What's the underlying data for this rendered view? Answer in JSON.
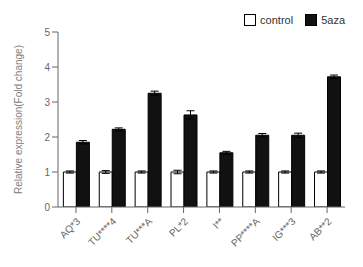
{
  "chart_data": {
    "type": "bar",
    "categories": [
      "AQ*3",
      "TU****4",
      "TU***A",
      "PL*2",
      "I**",
      "PP****A",
      "IG***3",
      "AB**2"
    ],
    "series": [
      {
        "name": "control",
        "color": "#ffffff",
        "values": [
          1.0,
          1.0,
          1.0,
          1.0,
          1.0,
          1.0,
          1.0,
          1.0
        ],
        "errors": [
          0.03,
          0.04,
          0.03,
          0.05,
          0.03,
          0.03,
          0.03,
          0.03
        ]
      },
      {
        "name": "5aza",
        "color": "#111111",
        "values": [
          1.85,
          2.22,
          3.25,
          2.63,
          1.55,
          2.05,
          2.05,
          3.72
        ],
        "errors": [
          0.05,
          0.04,
          0.06,
          0.12,
          0.04,
          0.05,
          0.06,
          0.05
        ]
      }
    ],
    "ylabel": "Relative expression(Fold change)",
    "ylim": [
      0,
      5
    ],
    "yticks": [
      0,
      1,
      2,
      3,
      4,
      5
    ],
    "legend": "upper right"
  }
}
